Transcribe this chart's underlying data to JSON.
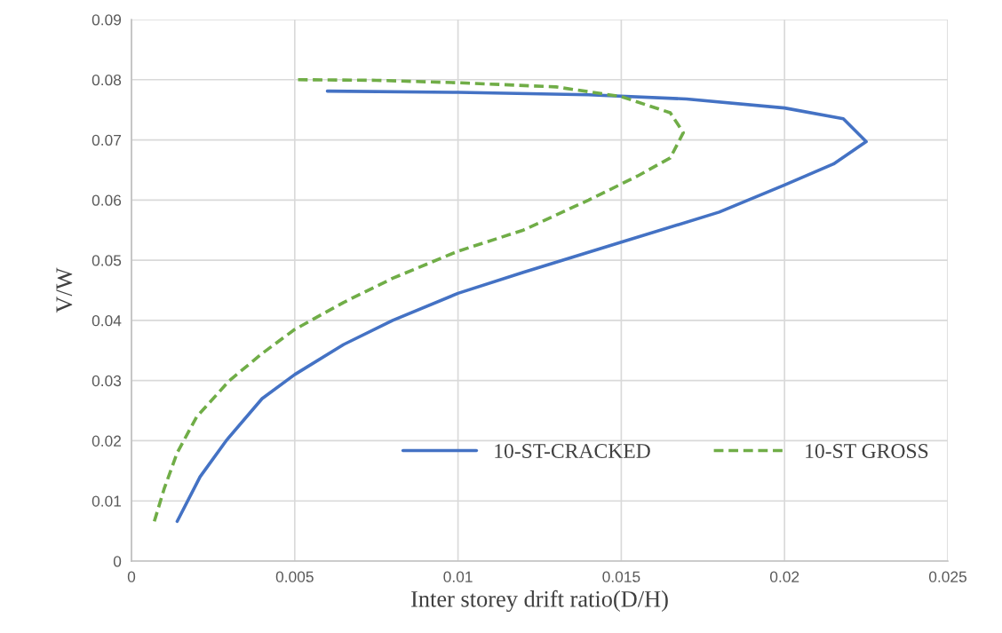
{
  "chart_data": {
    "type": "line",
    "xlabel": "Inter storey drift ratio(D/H)",
    "ylabel": "V/W",
    "xlim": [
      0,
      0.025
    ],
    "ylim": [
      0,
      0.09
    ],
    "xticks": [
      0,
      0.005,
      0.01,
      0.015,
      0.02,
      0.025
    ],
    "yticks": [
      0,
      0.01,
      0.02,
      0.03,
      0.04,
      0.05,
      0.06,
      0.07,
      0.08,
      0.09
    ],
    "grid": true,
    "legend": "right",
    "marker": "none",
    "series": [
      {
        "name": "10-ST-CRACKED",
        "color": "#4472c4",
        "line_style": "solid",
        "x": [
          0.0014,
          0.0021,
          0.0029,
          0.004,
          0.005,
          0.0065,
          0.008,
          0.01,
          0.012,
          0.015,
          0.018,
          0.02,
          0.0215,
          0.0225,
          0.0218,
          0.02,
          0.017,
          0.014,
          0.01,
          0.006
        ],
        "values": [
          0.0066,
          0.014,
          0.02,
          0.027,
          0.031,
          0.036,
          0.04,
          0.0445,
          0.048,
          0.053,
          0.058,
          0.0625,
          0.066,
          0.0697,
          0.0735,
          0.0753,
          0.0768,
          0.0775,
          0.0779,
          0.0781
        ]
      },
      {
        "name": "10-ST GROSS",
        "color": "#70ad47",
        "line_style": "dashed",
        "x": [
          0.0007,
          0.001,
          0.0014,
          0.002,
          0.003,
          0.004,
          0.005,
          0.0065,
          0.008,
          0.01,
          0.012,
          0.014,
          0.0155,
          0.0165,
          0.0169,
          0.0165,
          0.015,
          0.013,
          0.01,
          0.0075,
          0.0051
        ],
        "values": [
          0.0066,
          0.012,
          0.018,
          0.024,
          0.03,
          0.0345,
          0.0385,
          0.043,
          0.047,
          0.0515,
          0.055,
          0.06,
          0.064,
          0.067,
          0.0712,
          0.0745,
          0.0772,
          0.0788,
          0.0795,
          0.0799,
          0.08
        ]
      }
    ]
  }
}
